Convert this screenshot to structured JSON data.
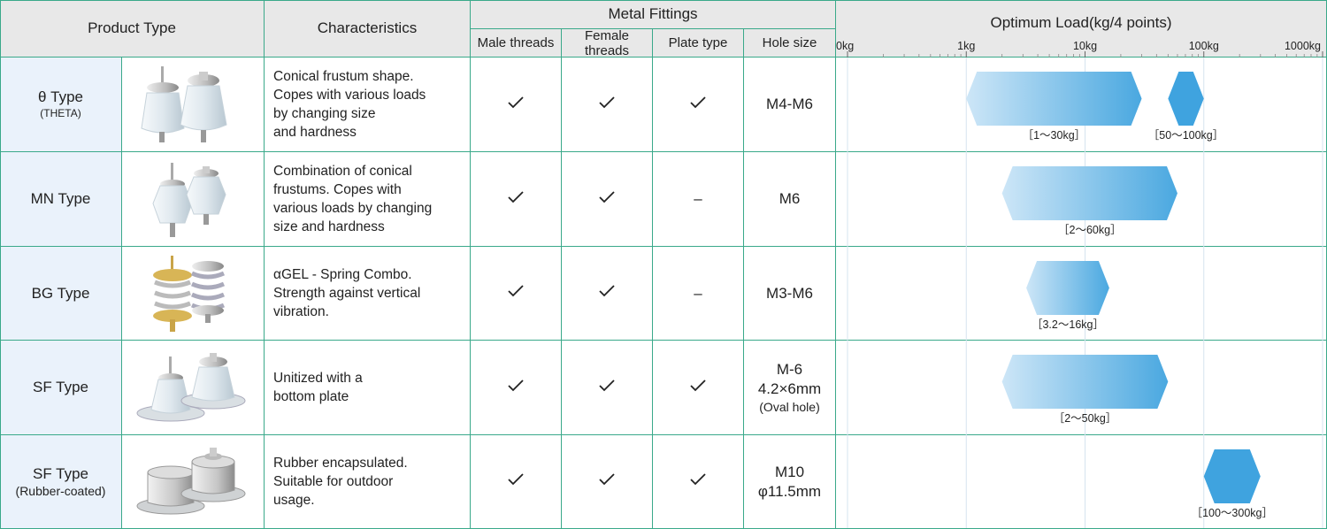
{
  "header": {
    "product_type": "Product Type",
    "characteristics": "Characteristics",
    "metal_fittings": "Metal Fittings",
    "male_threads": "Male threads",
    "female_threads": "Female threads",
    "plate_type": "Plate type",
    "hole_size": "Hole size",
    "optimum_load": "Optimum Load(kg/4 points)"
  },
  "rows": [
    {
      "name": "θ Type",
      "sub": "(THETA)",
      "char": [
        "Conical frustum shape.",
        "Copes with various loads",
        "by changing size",
        "and hardness"
      ],
      "male": "✓",
      "female": "✓",
      "plate": "✓",
      "hole": [
        "M4-M6"
      ],
      "hole_note": ""
    },
    {
      "name": "MN Type",
      "sub": "",
      "char": [
        "Combination of conical",
        "frustums. Copes with",
        "various loads by changing",
        "size and hardness"
      ],
      "male": "✓",
      "female": "✓",
      "plate": "–",
      "hole": [
        "M6"
      ],
      "hole_note": ""
    },
    {
      "name": "BG Type",
      "sub": "",
      "char": [
        "αGEL - Spring Combo.",
        "Strength against vertical",
        "vibration."
      ],
      "male": "✓",
      "female": "✓",
      "plate": "–",
      "hole": [
        "M3-M6"
      ],
      "hole_note": ""
    },
    {
      "name": "SF Type",
      "sub": "",
      "char": [
        "Unitized with a",
        "bottom plate"
      ],
      "male": "✓",
      "female": "✓",
      "plate": "✓",
      "hole": [
        "M-6",
        "4.2×6mm"
      ],
      "hole_note": "(Oval hole)"
    },
    {
      "name": "SF Type",
      "sub": "(Rubber-coated)",
      "char": [
        "Rubber encapsulated.",
        "Suitable for outdoor",
        "usage."
      ],
      "male": "✓",
      "female": "✓",
      "plate": "✓",
      "hole": [
        "M10",
        "φ11.5mm"
      ],
      "hole_note": ""
    }
  ],
  "chart_data": {
    "type": "bar",
    "scale": "log",
    "xlim": [
      1,
      1000000
    ],
    "tick_labels": [
      "0kg",
      "1kg",
      "10kg",
      "100kg",
      "1000kg"
    ],
    "bars": [
      {
        "row": 0,
        "min": 1,
        "max": 30,
        "label": "［1～30kg］",
        "shade": "light"
      },
      {
        "row": 0,
        "min": 50,
        "max": 100,
        "label": "［50～100kg］",
        "shade": "dark"
      },
      {
        "row": 1,
        "min": 2,
        "max": 60,
        "label": "［2～60kg］",
        "shade": "light"
      },
      {
        "row": 2,
        "min": 3.2,
        "max": 16,
        "label": "［3.2～16kg］",
        "shade": "light"
      },
      {
        "row": 3,
        "min": 2,
        "max": 50,
        "label": "［2～50kg］",
        "shade": "light"
      },
      {
        "row": 4,
        "min": 100,
        "max": 300,
        "label": "［100～300kg］",
        "shade": "dark"
      }
    ],
    "colors": {
      "light_start": "#cde6f7",
      "light_end": "#4aa8e0",
      "dark": "#3fa3df"
    }
  }
}
